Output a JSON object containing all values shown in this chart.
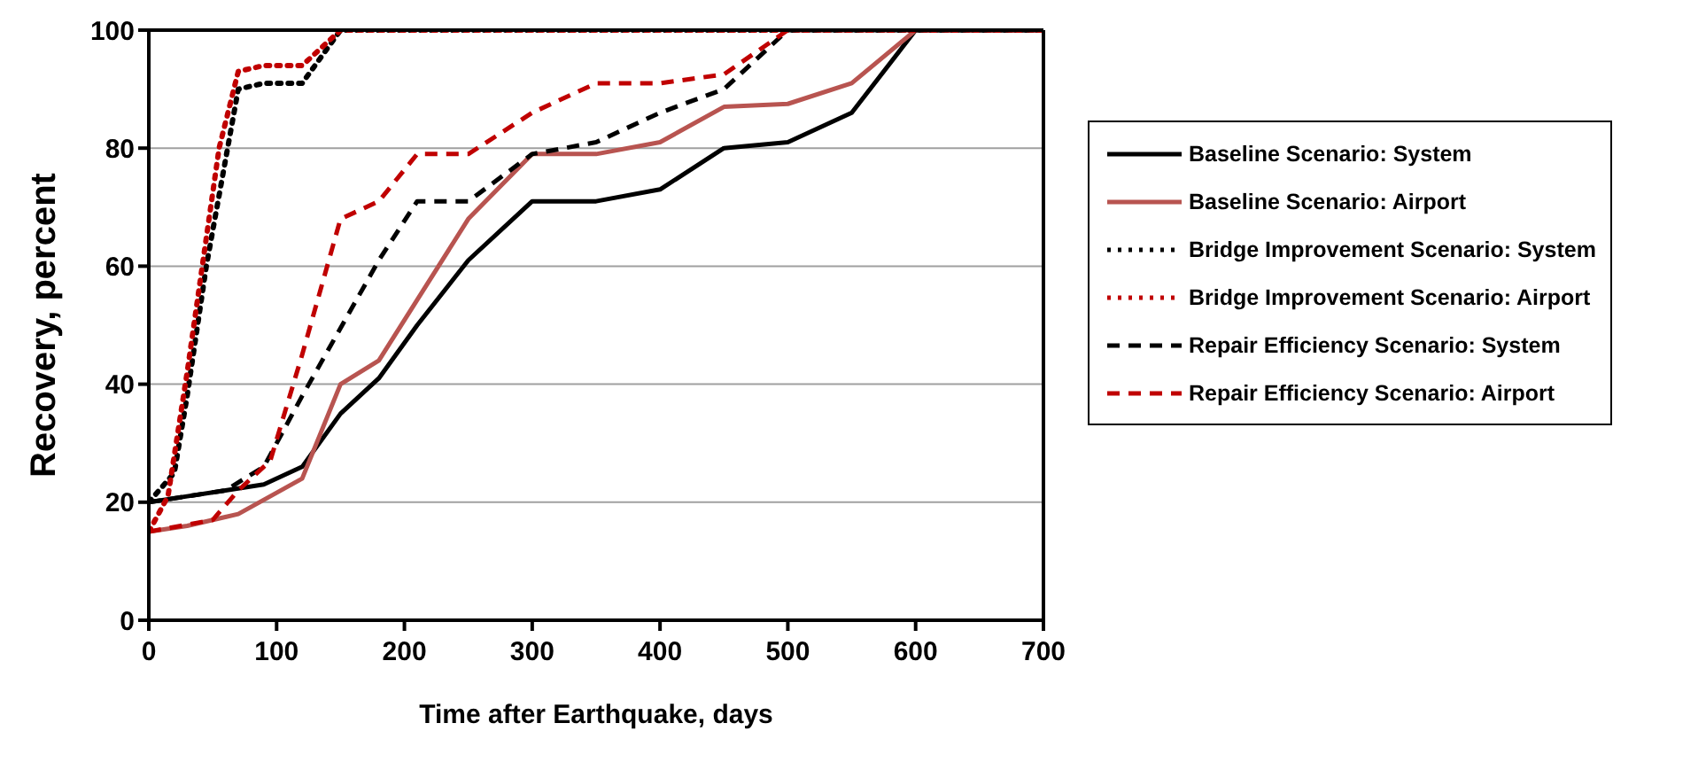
{
  "chart_data": {
    "type": "line",
    "xlabel": "Time after Earthquake, days",
    "ylabel": "Recovery, percent",
    "xlim": [
      0,
      700
    ],
    "xticks": [
      0,
      100,
      200,
      300,
      400,
      500,
      600,
      700
    ],
    "ylim": [
      0,
      100
    ],
    "yticks": [
      0,
      20,
      40,
      60,
      80,
      100
    ],
    "grid": "y",
    "legend": "right",
    "marker": "none",
    "series": [
      {
        "name": "Baseline Scenario: System",
        "color": "#000000",
        "line_style": "solid",
        "x": [
          0,
          30,
          60,
          90,
          120,
          150,
          180,
          210,
          250,
          300,
          350,
          400,
          450,
          500,
          550,
          600,
          700
        ],
        "values": [
          20,
          21,
          22,
          23,
          26,
          35,
          41,
          50,
          61,
          71,
          71,
          73,
          80,
          81,
          86,
          100,
          100
        ]
      },
      {
        "name": "Baseline Scenario: Airport",
        "color": "#b85450",
        "line_style": "solid",
        "x": [
          0,
          30,
          70,
          120,
          150,
          180,
          250,
          300,
          350,
          400,
          450,
          500,
          550,
          600,
          700
        ],
        "values": [
          15,
          16,
          18,
          24,
          40,
          44,
          68,
          79,
          79,
          81,
          87,
          87.5,
          91,
          100,
          100
        ]
      },
      {
        "name": "Bridge Improvement Scenario: System",
        "color": "#000000",
        "line_style": "dotted",
        "x": [
          0,
          20,
          30,
          45,
          70,
          90,
          120,
          150,
          700
        ],
        "values": [
          20,
          25,
          38,
          60,
          90,
          91,
          91,
          100,
          100
        ]
      },
      {
        "name": "Bridge Improvement Scenario: Airport",
        "color": "#c00000",
        "line_style": "dotted",
        "x": [
          0,
          15,
          30,
          55,
          70,
          90,
          120,
          150,
          700
        ],
        "values": [
          15,
          21,
          42,
          80,
          93,
          94,
          94,
          100,
          100
        ]
      },
      {
        "name": "Repair Efficiency Scenario: System",
        "color": "#000000",
        "line_style": "dashed",
        "x": [
          0,
          30,
          60,
          90,
          120,
          180,
          210,
          250,
          300,
          350,
          400,
          450,
          500,
          700
        ],
        "values": [
          20,
          21,
          22,
          26,
          38,
          61,
          71,
          71,
          79,
          81,
          86,
          90,
          100,
          100
        ]
      },
      {
        "name": "Repair Efficiency Scenario: Airport",
        "color": "#c00000",
        "line_style": "dashed",
        "x": [
          0,
          50,
          70,
          95,
          120,
          150,
          180,
          210,
          250,
          300,
          350,
          400,
          450,
          500,
          700
        ],
        "values": [
          15,
          17,
          22,
          27,
          45,
          68,
          71,
          79,
          79,
          86,
          91,
          91,
          92.5,
          100,
          100
        ]
      }
    ]
  }
}
